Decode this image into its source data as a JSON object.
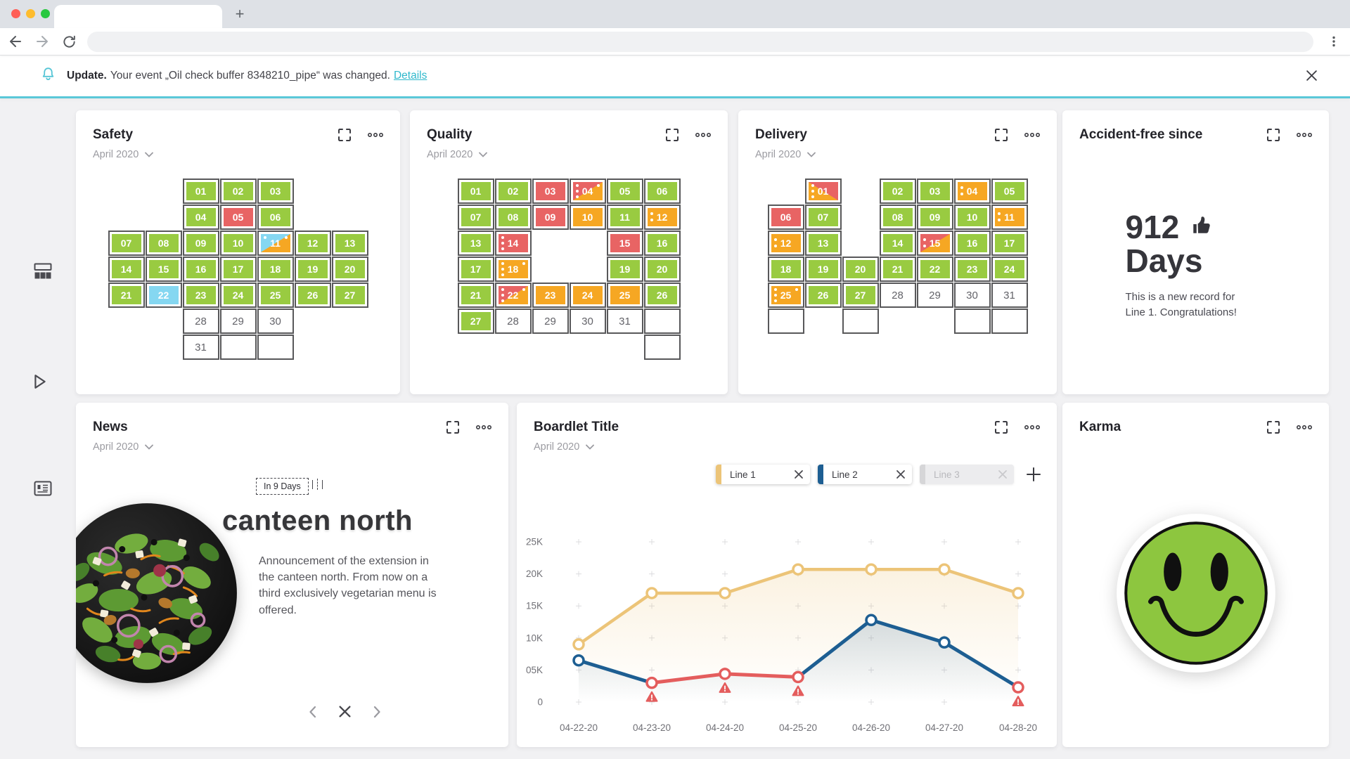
{
  "browser": {
    "new_tab_label": "+"
  },
  "notification": {
    "title": "Update.",
    "message": "Your event „Oil check buffer 8348210_pipe“ was changed.",
    "link_label": "Details",
    "accent": "#5ac8d8"
  },
  "cards": {
    "safety": {
      "title": "Safety",
      "period": "April 2020"
    },
    "quality": {
      "title": "Quality",
      "period": "April 2020"
    },
    "delivery": {
      "title": "Delivery",
      "period": "April 2020"
    },
    "accident": {
      "title": "Accident-free since",
      "value": "912",
      "unit": "Days",
      "message": "This is a new record for Line 1. Congratulations!"
    },
    "news": {
      "title": "News",
      "period": "April 2020",
      "badge": "In 9 Days",
      "headline": "canteen north",
      "body": "Announcement of the extension in the canteen north. From now on a third exclusively vegetarian menu is offered."
    },
    "boardlet": {
      "title": "Boardlet Title",
      "period": "April 2020"
    },
    "karma": {
      "title": "Karma"
    }
  },
  "cell_colors": {
    "green": "#99cb41",
    "red": "#e86464",
    "orange": "#f6a723",
    "cyan": "#85d7f1",
    "border": "#58585a"
  },
  "calendars": {
    "safety": {
      "columns": 7,
      "rows": [
        [
          null,
          null,
          {
            "d": "01",
            "bg": "g"
          },
          {
            "d": "02",
            "bg": "g"
          },
          {
            "d": "03",
            "bg": "g"
          },
          null,
          null
        ],
        [
          null,
          null,
          {
            "d": "04",
            "bg": "g"
          },
          {
            "d": "05",
            "bg": "r"
          },
          {
            "d": "06",
            "bg": "g"
          },
          null,
          null
        ],
        [
          {
            "d": "07",
            "bg": "g"
          },
          {
            "d": "08",
            "bg": "g"
          },
          {
            "d": "09",
            "bg": "g"
          },
          {
            "d": "10",
            "bg": "g"
          },
          {
            "d": "11",
            "bg": "s-co",
            "tl": true,
            "tr": true
          },
          {
            "d": "12",
            "bg": "g"
          },
          {
            "d": "13",
            "bg": "g"
          }
        ],
        [
          {
            "d": "14",
            "bg": "g"
          },
          {
            "d": "15",
            "bg": "g"
          },
          {
            "d": "16",
            "bg": "g"
          },
          {
            "d": "17",
            "bg": "g"
          },
          {
            "d": "18",
            "bg": "g"
          },
          {
            "d": "19",
            "bg": "g"
          },
          {
            "d": "20",
            "bg": "g"
          }
        ],
        [
          {
            "d": "21",
            "bg": "g"
          },
          {
            "d": "22",
            "bg": "c"
          },
          {
            "d": "23",
            "bg": "g"
          },
          {
            "d": "24",
            "bg": "g"
          },
          {
            "d": "25",
            "bg": "g"
          },
          {
            "d": "26",
            "bg": "g"
          },
          {
            "d": "27",
            "bg": "g"
          }
        ],
        [
          null,
          null,
          {
            "d": "28",
            "bg": "w"
          },
          {
            "d": "29",
            "bg": "w"
          },
          {
            "d": "30",
            "bg": "w"
          },
          null,
          null
        ],
        [
          null,
          null,
          {
            "d": "31",
            "bg": "w"
          },
          {
            "bg": "e"
          },
          {
            "bg": "e"
          },
          null,
          null
        ]
      ]
    },
    "quality": {
      "columns": 6,
      "rows": [
        [
          {
            "d": "01",
            "bg": "g"
          },
          {
            "d": "02",
            "bg": "g"
          },
          {
            "d": "03",
            "bg": "r"
          },
          {
            "d": "04",
            "bg": "s-ro",
            "ld": 3,
            "tr": true
          },
          {
            "d": "05",
            "bg": "g"
          },
          {
            "d": "06",
            "bg": "g"
          }
        ],
        [
          {
            "d": "07",
            "bg": "g"
          },
          {
            "d": "08",
            "bg": "g"
          },
          {
            "d": "09",
            "bg": "r"
          },
          {
            "d": "10",
            "bg": "o"
          },
          {
            "d": "11",
            "bg": "g"
          },
          {
            "d": "12",
            "bg": "o",
            "ld": 2
          }
        ],
        [
          {
            "d": "13",
            "bg": "g"
          },
          {
            "d": "14",
            "bg": "r",
            "ld": 3
          },
          null,
          null,
          {
            "d": "15",
            "bg": "r"
          },
          {
            "d": "16",
            "bg": "g"
          }
        ],
        [
          {
            "d": "17",
            "bg": "g"
          },
          {
            "d": "18",
            "bg": "o",
            "ld": 3,
            "tr": true
          },
          null,
          null,
          {
            "d": "19",
            "bg": "g"
          },
          {
            "d": "20",
            "bg": "g"
          }
        ],
        [
          {
            "d": "21",
            "bg": "g"
          },
          {
            "d": "22",
            "bg": "s-ro",
            "ld": 3,
            "tr": true
          },
          {
            "d": "23",
            "bg": "o"
          },
          {
            "d": "24",
            "bg": "o"
          },
          {
            "d": "25",
            "bg": "o"
          },
          {
            "d": "26",
            "bg": "g"
          }
        ],
        [
          {
            "d": "27",
            "bg": "g"
          },
          {
            "d": "28",
            "bg": "w"
          },
          {
            "d": "29",
            "bg": "w"
          },
          {
            "d": "30",
            "bg": "w"
          },
          {
            "d": "31",
            "bg": "w"
          },
          {
            "bg": "e"
          }
        ],
        [
          null,
          null,
          null,
          null,
          null,
          {
            "bg": "e"
          }
        ]
      ]
    },
    "delivery": {
      "columns": 7,
      "rows": [
        [
          null,
          {
            "d": "01",
            "bg": "s-or",
            "ld": 3
          },
          null,
          {
            "d": "02",
            "bg": "g"
          },
          {
            "d": "03",
            "bg": "g"
          },
          {
            "d": "04",
            "bg": "o",
            "ld": 2
          },
          {
            "d": "05",
            "bg": "g"
          }
        ],
        [
          {
            "d": "06",
            "bg": "r"
          },
          {
            "d": "07",
            "bg": "g"
          },
          null,
          {
            "d": "08",
            "bg": "g"
          },
          {
            "d": "09",
            "bg": "g"
          },
          {
            "d": "10",
            "bg": "g"
          },
          {
            "d": "11",
            "bg": "o",
            "ld": 2
          }
        ],
        [
          {
            "d": "12",
            "bg": "o",
            "ld": 2
          },
          {
            "d": "13",
            "bg": "g"
          },
          null,
          {
            "d": "14",
            "bg": "g"
          },
          {
            "d": "15",
            "bg": "s-ro",
            "ld": 2
          },
          {
            "d": "16",
            "bg": "g"
          },
          {
            "d": "17",
            "bg": "g"
          }
        ],
        [
          {
            "d": "18",
            "bg": "g"
          },
          {
            "d": "19",
            "bg": "g"
          },
          {
            "d": "20",
            "bg": "g"
          },
          {
            "d": "21",
            "bg": "g"
          },
          {
            "d": "22",
            "bg": "g"
          },
          {
            "d": "23",
            "bg": "g"
          },
          {
            "d": "24",
            "bg": "g"
          }
        ],
        [
          {
            "d": "25",
            "bg": "o",
            "ld": 3,
            "tr": true
          },
          {
            "d": "26",
            "bg": "g"
          },
          {
            "d": "27",
            "bg": "g"
          },
          {
            "d": "28",
            "bg": "w"
          },
          {
            "d": "29",
            "bg": "w"
          },
          {
            "d": "30",
            "bg": "w"
          },
          {
            "d": "31",
            "bg": "w"
          }
        ],
        [
          {
            "bg": "e"
          },
          null,
          {
            "bg": "e"
          },
          null,
          null,
          {
            "bg": "e"
          },
          {
            "bg": "e"
          }
        ]
      ]
    }
  },
  "chart_data": {
    "type": "line",
    "title": "Boardlet Title",
    "x_labels": [
      "04-22-20",
      "04-23-20",
      "04-24-20",
      "04-25-20",
      "04-26-20",
      "04-27-20",
      "04-28-20"
    ],
    "y_tick_labels": [
      "25K",
      "20K",
      "15K",
      "10K",
      "05K",
      "0"
    ],
    "y_tick_values": [
      25000,
      20000,
      15000,
      10000,
      5000,
      0
    ],
    "ylim": [
      0,
      25000
    ],
    "grid": "plus-marks",
    "legend_position": "top-right",
    "legend": [
      {
        "label": "Line 1",
        "color": "#ecc478",
        "enabled": true
      },
      {
        "label": "Line 2",
        "color": "#1d5e92",
        "enabled": true
      },
      {
        "label": "Line 3",
        "color": "#d2d2d6",
        "enabled": false
      }
    ],
    "series": [
      {
        "name": "Line 1",
        "color": "#ecc478",
        "values": [
          9000,
          17000,
          17000,
          20700,
          20700,
          20700,
          17000
        ]
      },
      {
        "name": "Line 2",
        "color": "#1d5e92",
        "alert_color": "#e45d5d",
        "values": [
          6500,
          3000,
          4400,
          3900,
          12800,
          9300,
          2300
        ],
        "alert_points": [
          1,
          2,
          3,
          6
        ],
        "alert_segments": [
          [
            1,
            2
          ],
          [
            2,
            3
          ]
        ]
      }
    ]
  }
}
